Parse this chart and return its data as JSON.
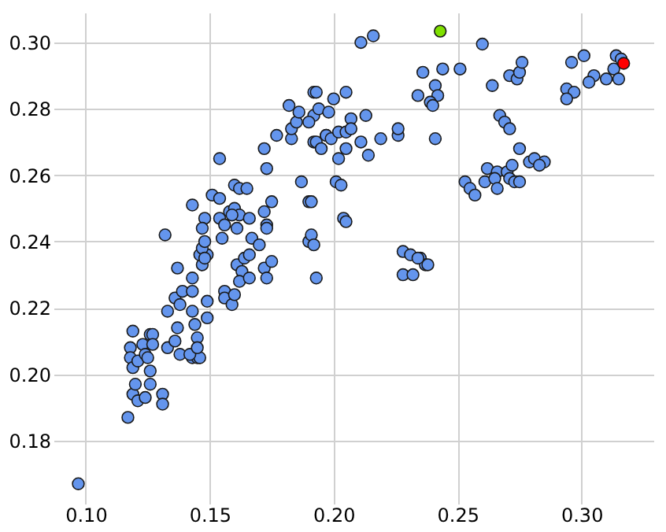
{
  "chart_data": {
    "type": "scatter",
    "xlim": [
      0.087,
      0.329
    ],
    "ylim": [
      0.161,
      0.309
    ],
    "xticks": [
      {
        "value": 0.1,
        "label": "0.10"
      },
      {
        "value": 0.15,
        "label": "0.15"
      },
      {
        "value": 0.2,
        "label": "0.20"
      },
      {
        "value": 0.25,
        "label": "0.25"
      },
      {
        "value": 0.3,
        "label": "0.30"
      }
    ],
    "yticks": [
      {
        "value": 0.18,
        "label": "0.18"
      },
      {
        "value": 0.2,
        "label": "0.20"
      },
      {
        "value": 0.22,
        "label": "0.22"
      },
      {
        "value": 0.24,
        "label": "0.24"
      },
      {
        "value": 0.26,
        "label": "0.26"
      },
      {
        "value": 0.28,
        "label": "0.28"
      },
      {
        "value": 0.3,
        "label": "0.30"
      }
    ],
    "grid": true,
    "marker": "circle",
    "series": [
      {
        "color": "#6495ed",
        "x": [
          0.097,
          0.117,
          0.119,
          0.12,
          0.121,
          0.124,
          0.126,
          0.126,
          0.131,
          0.131,
          0.119,
          0.118,
          0.118,
          0.119,
          0.121,
          0.123,
          0.124,
          0.126,
          0.127,
          0.127,
          0.125,
          0.133,
          0.133,
          0.137,
          0.137,
          0.136,
          0.138,
          0.136,
          0.139,
          0.138,
          0.143,
          0.143,
          0.143,
          0.144,
          0.145,
          0.143,
          0.145,
          0.146,
          0.142,
          0.145,
          0.149,
          0.149,
          0.147,
          0.146,
          0.149,
          0.156,
          0.156,
          0.159,
          0.16,
          0.161,
          0.163,
          0.162,
          0.164,
          0.166,
          0.172,
          0.173,
          0.175,
          0.193,
          0.132,
          0.143,
          0.154,
          0.151,
          0.148,
          0.147,
          0.147,
          0.148,
          0.148,
          0.154,
          0.154,
          0.156,
          0.155,
          0.158,
          0.16,
          0.16,
          0.161,
          0.162,
          0.165,
          0.162,
          0.159,
          0.166,
          0.167,
          0.17,
          0.166,
          0.172,
          0.173,
          0.173,
          0.175,
          0.173,
          0.172,
          0.177,
          0.182,
          0.183,
          0.183,
          0.185,
          0.186,
          0.192,
          0.192,
          0.19,
          0.192,
          0.187,
          0.19,
          0.191,
          0.19,
          0.191,
          0.193,
          0.195,
          0.197,
          0.211,
          0.216,
          0.193,
          0.194,
          0.198,
          0.2,
          0.205,
          0.207,
          0.213,
          0.197,
          0.199,
          0.202,
          0.205,
          0.207,
          0.211,
          0.214,
          0.205,
          0.202,
          0.219,
          0.226,
          0.226,
          0.241,
          0.201,
          0.203,
          0.204,
          0.205,
          0.192,
          0.228,
          0.231,
          0.235,
          0.237,
          0.228,
          0.232,
          0.238,
          0.234,
          0.236,
          0.241,
          0.244,
          0.242,
          0.234,
          0.239,
          0.24,
          0.251,
          0.26,
          0.264,
          0.271,
          0.274,
          0.275,
          0.276,
          0.267,
          0.269,
          0.271,
          0.275,
          0.279,
          0.281,
          0.285,
          0.283,
          0.262,
          0.266,
          0.27,
          0.272,
          0.253,
          0.255,
          0.257,
          0.261,
          0.265,
          0.266,
          0.271,
          0.273,
          0.275,
          0.296,
          0.301,
          0.305,
          0.303,
          0.31,
          0.313,
          0.314,
          0.316,
          0.315,
          0.294,
          0.297,
          0.294
        ],
        "values": [
          0.167,
          0.187,
          0.194,
          0.197,
          0.192,
          0.193,
          0.197,
          0.201,
          0.194,
          0.191,
          0.213,
          0.208,
          0.205,
          0.202,
          0.204,
          0.209,
          0.206,
          0.212,
          0.212,
          0.209,
          0.205,
          0.219,
          0.208,
          0.232,
          0.214,
          0.21,
          0.206,
          0.223,
          0.225,
          0.221,
          0.229,
          0.225,
          0.219,
          0.215,
          0.211,
          0.205,
          0.205,
          0.205,
          0.206,
          0.208,
          0.222,
          0.217,
          0.233,
          0.236,
          0.236,
          0.225,
          0.223,
          0.221,
          0.224,
          0.233,
          0.231,
          0.228,
          0.235,
          0.229,
          0.232,
          0.229,
          0.234,
          0.229,
          0.242,
          0.251,
          0.265,
          0.254,
          0.247,
          0.244,
          0.238,
          0.24,
          0.235,
          0.253,
          0.247,
          0.245,
          0.241,
          0.249,
          0.257,
          0.25,
          0.244,
          0.256,
          0.256,
          0.248,
          0.248,
          0.247,
          0.241,
          0.239,
          0.236,
          0.249,
          0.245,
          0.244,
          0.252,
          0.262,
          0.268,
          0.272,
          0.281,
          0.271,
          0.274,
          0.276,
          0.279,
          0.285,
          0.278,
          0.276,
          0.27,
          0.258,
          0.252,
          0.252,
          0.24,
          0.242,
          0.27,
          0.268,
          0.272,
          0.3,
          0.302,
          0.285,
          0.28,
          0.279,
          0.283,
          0.285,
          0.277,
          0.278,
          0.272,
          0.271,
          0.273,
          0.273,
          0.274,
          0.27,
          0.266,
          0.268,
          0.265,
          0.271,
          0.272,
          0.274,
          0.271,
          0.258,
          0.257,
          0.247,
          0.246,
          0.239,
          0.237,
          0.236,
          0.235,
          0.233,
          0.23,
          0.23,
          0.233,
          0.235,
          0.291,
          0.287,
          0.292,
          0.284,
          0.284,
          0.282,
          0.281,
          0.292,
          0.2995,
          0.287,
          0.29,
          0.289,
          0.291,
          0.294,
          0.278,
          0.276,
          0.274,
          0.268,
          0.264,
          0.265,
          0.264,
          0.263,
          0.262,
          0.261,
          0.261,
          0.263,
          0.258,
          0.256,
          0.254,
          0.258,
          0.259,
          0.256,
          0.259,
          0.258,
          0.258,
          0.294,
          0.296,
          0.29,
          0.288,
          0.289,
          0.292,
          0.296,
          0.295,
          0.289,
          0.286,
          0.285,
          0.283
        ]
      },
      {
        "color": "#7fe000",
        "x": [
          0.243
        ],
        "values": [
          0.3034
        ]
      },
      {
        "color": "#ff0000",
        "x": [
          0.317
        ],
        "values": [
          0.2937
        ]
      }
    ]
  }
}
